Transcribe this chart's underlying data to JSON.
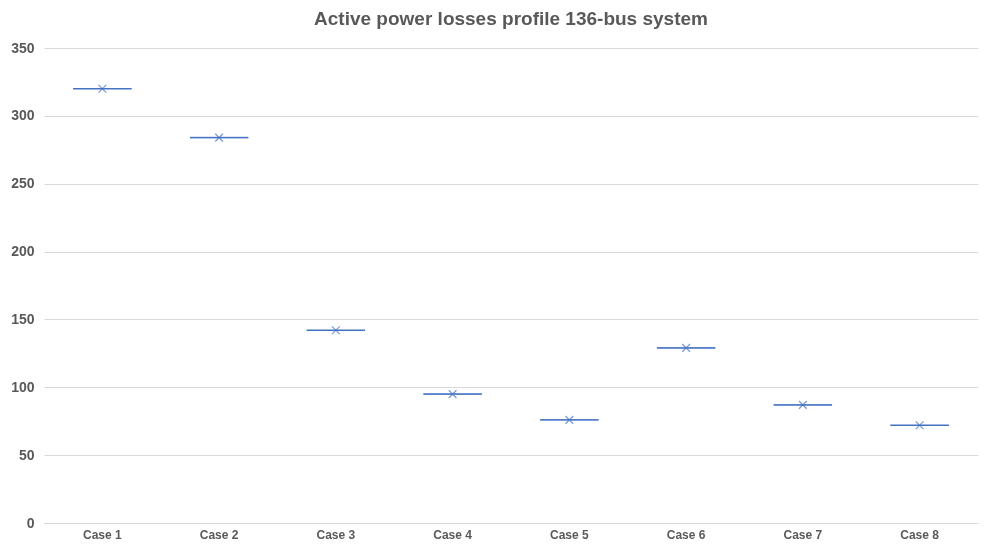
{
  "chart_data": {
    "type": "box",
    "title": "Active power losses profile 136-bus system",
    "categories": [
      "Case 1",
      "Case 2",
      "Case 3",
      "Case 4",
      "Case 5",
      "Case 6",
      "Case 7",
      "Case 8"
    ],
    "color": "#4472c4",
    "boxes": [
      {
        "low": 320,
        "q1": 320,
        "median": 320,
        "q3": 320,
        "high": 320,
        "mean": 320
      },
      {
        "low": 284,
        "q1": 284,
        "median": 284,
        "q3": 284,
        "high": 284,
        "mean": 284
      },
      {
        "low": 142,
        "q1": 142,
        "median": 142,
        "q3": 142,
        "high": 142,
        "mean": 142
      },
      {
        "low": 95,
        "q1": 95,
        "median": 95,
        "q3": 95,
        "high": 95,
        "mean": 95
      },
      {
        "low": 76,
        "q1": 76,
        "median": 76,
        "q3": 76,
        "high": 76,
        "mean": 76
      },
      {
        "low": 129,
        "q1": 129,
        "median": 129,
        "q3": 129,
        "high": 129,
        "mean": 129
      },
      {
        "low": 87,
        "q1": 87,
        "median": 87,
        "q3": 87,
        "high": 87,
        "mean": 87
      },
      {
        "low": 72,
        "q1": 72,
        "median": 72,
        "q3": 72,
        "high": 72,
        "mean": 72
      }
    ],
    "ylim": [
      0,
      350
    ],
    "yticks": [
      0,
      50,
      100,
      150,
      200,
      250,
      300,
      350
    ],
    "grid": "y"
  }
}
